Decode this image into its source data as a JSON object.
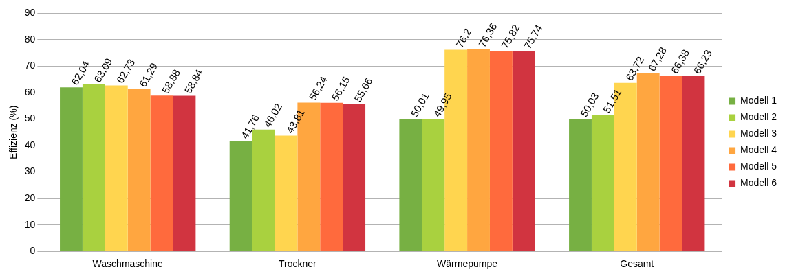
{
  "chart_data": {
    "type": "bar",
    "ylabel": "Effizienz (%)",
    "categories": [
      "Waschmaschine",
      "Trockner",
      "Wärmepumpe",
      "Gesamt"
    ],
    "ylim": [
      0,
      90
    ],
    "yticks": [
      0,
      10,
      20,
      30,
      40,
      50,
      60,
      70,
      80,
      90
    ],
    "grid": "y",
    "legend": "right",
    "series": [
      {
        "name": "Modell 1",
        "color": "#77b043",
        "values": [
          62.04,
          41.76,
          50.01,
          50.03
        ],
        "value_labels": [
          "62,04",
          "41,76",
          "50,01",
          "50,03"
        ]
      },
      {
        "name": "Modell 2",
        "color": "#a9d13f",
        "values": [
          63.09,
          46.02,
          49.95,
          51.51
        ],
        "value_labels": [
          "63,09",
          "46,02",
          "49,95",
          "51,51"
        ]
      },
      {
        "name": "Modell 3",
        "color": "#ffd54f",
        "values": [
          62.73,
          43.81,
          76.2,
          63.72
        ],
        "value_labels": [
          "62,73",
          "43,81",
          "76,2",
          "63,72"
        ]
      },
      {
        "name": "Modell 4",
        "color": "#ffa640",
        "values": [
          61.29,
          56.24,
          76.36,
          67.28
        ],
        "value_labels": [
          "61,29",
          "56,24",
          "76,36",
          "67,28"
        ]
      },
      {
        "name": "Modell 5",
        "color": "#ff6a3d",
        "values": [
          58.88,
          56.15,
          75.82,
          66.38
        ],
        "value_labels": [
          "58,88",
          "56,15",
          "75,82",
          "66,38"
        ]
      },
      {
        "name": "Modell 6",
        "color": "#d13440",
        "values": [
          58.84,
          55.66,
          75.74,
          66.23
        ],
        "value_labels": [
          "58,84",
          "55,66",
          "75,74",
          "66,23"
        ]
      }
    ]
  }
}
